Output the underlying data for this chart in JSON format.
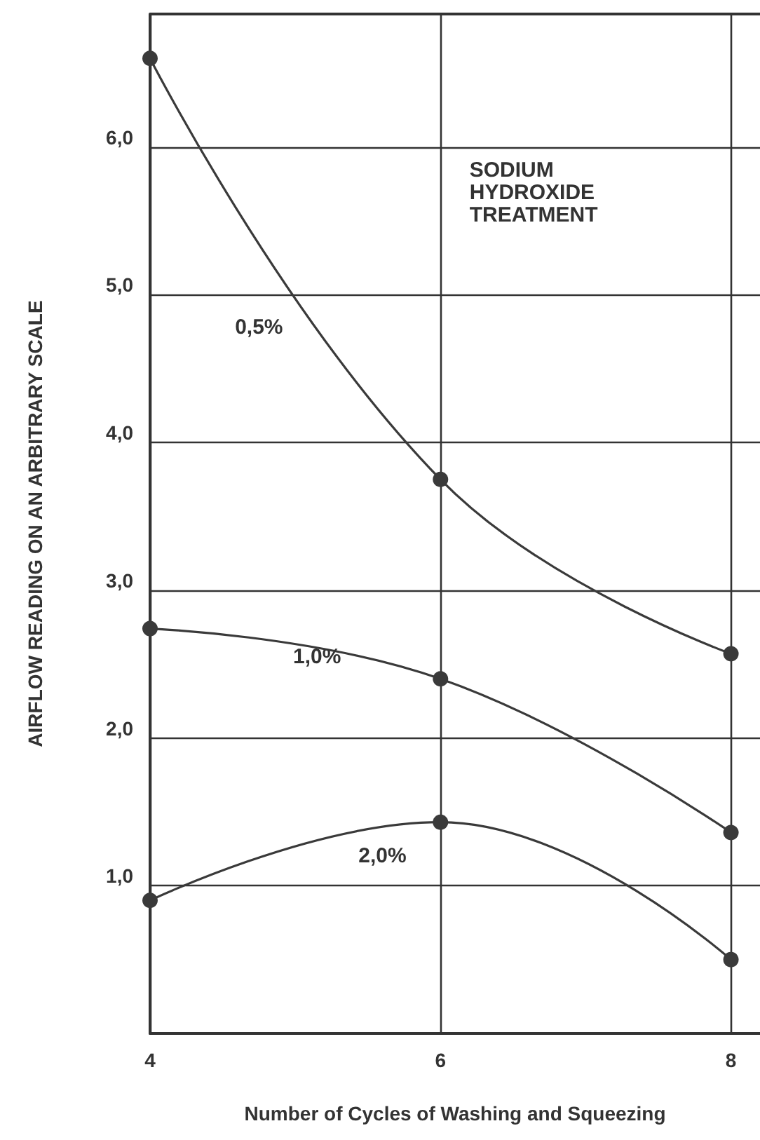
{
  "chart_data": {
    "type": "line",
    "xlabel": "Number of Cycles of Washing and Squeezing",
    "ylabel": "AIRFLOW READING ON AN ARBITRARY SCALE",
    "x": [
      4,
      6,
      8
    ],
    "series": [
      {
        "name": "0,5%",
        "color": "#3a3a3a",
        "values": [
          6.6,
          3.75,
          2.57
        ]
      },
      {
        "name": "1,0%",
        "color": "#3a3a3a",
        "values": [
          2.74,
          2.4,
          1.36
        ]
      },
      {
        "name": "2,0%",
        "color": "#3a3a3a",
        "values": [
          0.9,
          1.43,
          0.5
        ]
      }
    ],
    "xlim": [
      4,
      8.2
    ],
    "xticks": [
      4,
      6,
      8
    ],
    "ylim": [
      0,
      6.9
    ],
    "yticks": [
      {
        "value": 1,
        "label": "1,0"
      },
      {
        "value": 2,
        "label": "2,0"
      },
      {
        "value": 3,
        "label": "3,0"
      },
      {
        "value": 4,
        "label": "4,0"
      },
      {
        "value": 5,
        "label": "5,0"
      },
      {
        "value": 6,
        "label": "6,0"
      }
    ],
    "annotations": [
      "SODIUM HYDROXIDE TREATMENT"
    ],
    "grid": true,
    "legend": false,
    "marker": "circle",
    "line_style": "solid"
  }
}
